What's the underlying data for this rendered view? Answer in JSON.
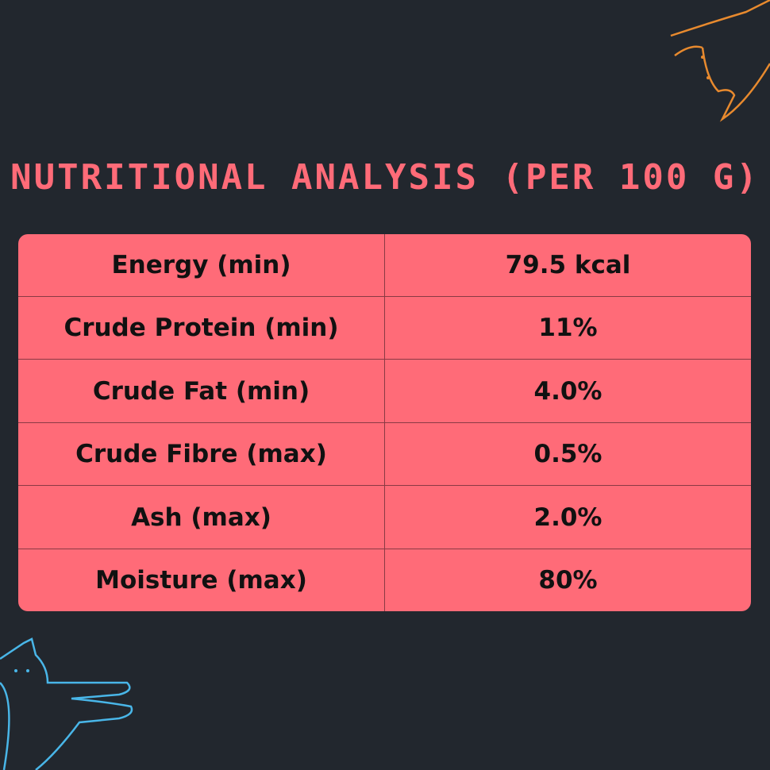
{
  "title": "NUTRITIONAL ANALYSIS (PER 100 G)",
  "table": {
    "rows": [
      [
        "Energy (min)",
        "79.5 kcal"
      ],
      [
        "Crude Protein (min)",
        "11%"
      ],
      [
        "Crude Fat (min)",
        "4.0%"
      ],
      [
        "Crude Fibre (max)",
        "0.5%"
      ],
      [
        "Ash (max)",
        "2.0%"
      ],
      [
        "Moisture (max)",
        "80%"
      ]
    ]
  }
}
